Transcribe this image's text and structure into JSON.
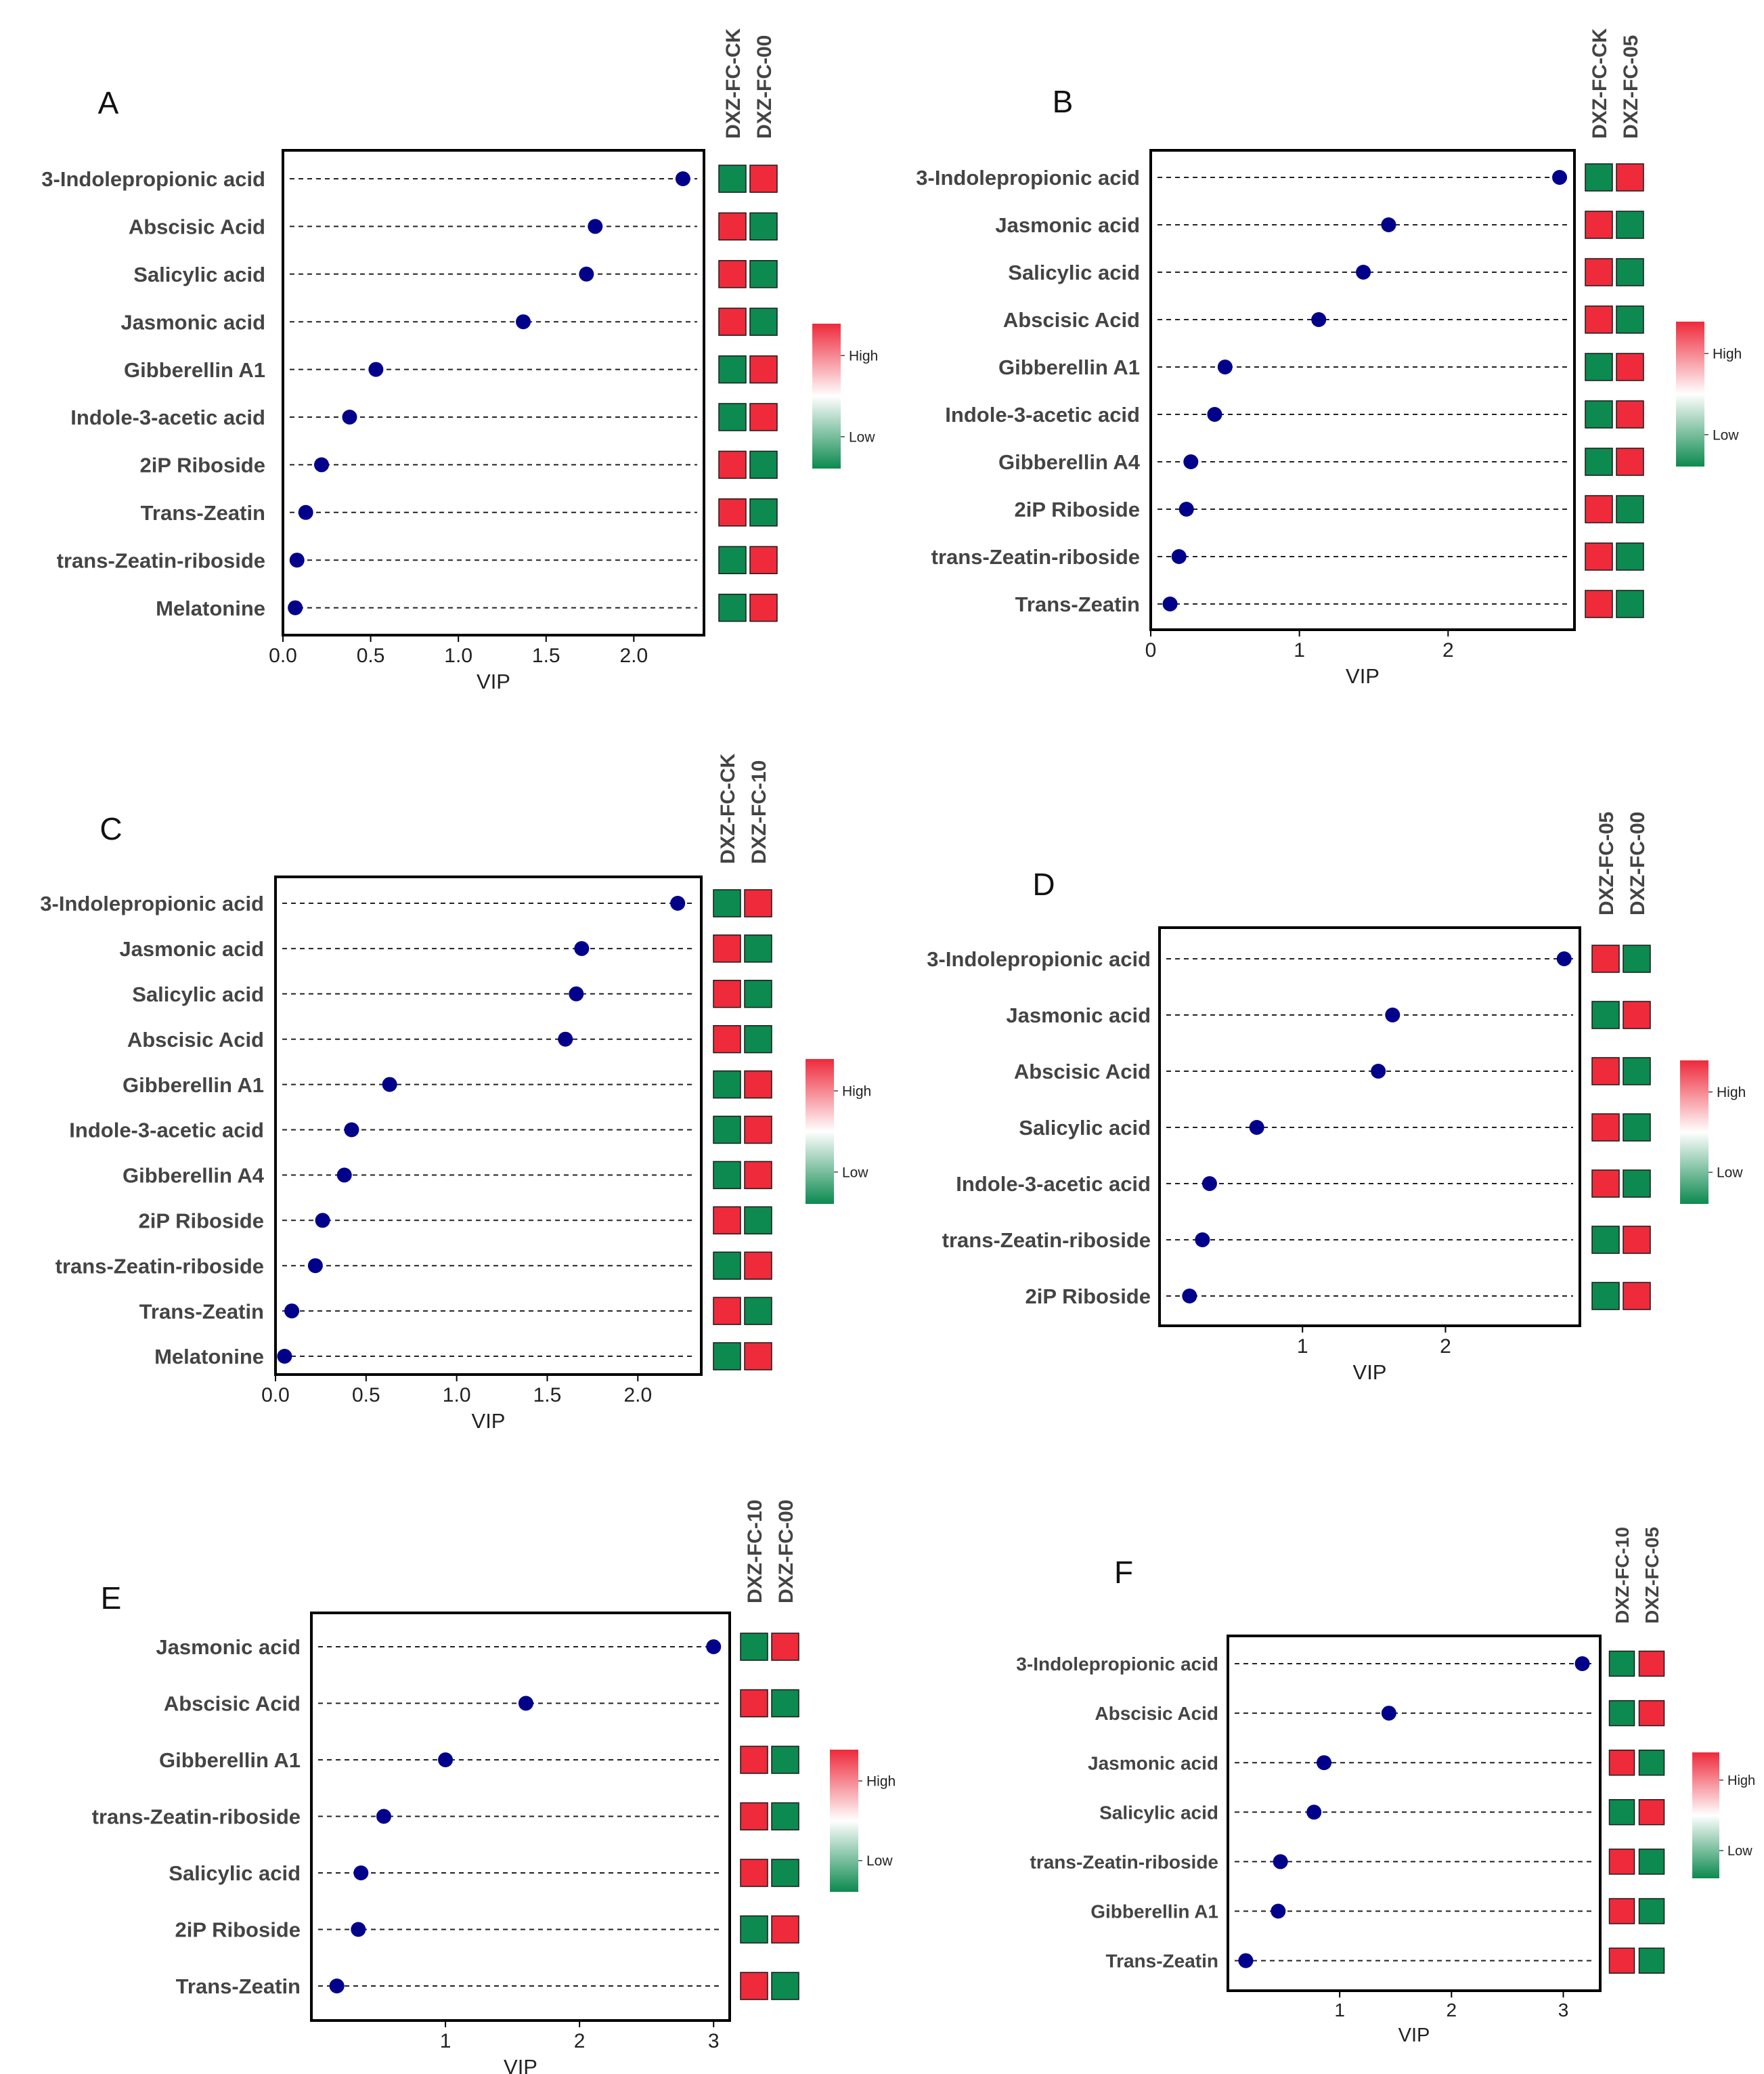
{
  "legend": {
    "high": "High",
    "low": "Low",
    "high_color": "#ee2a3b",
    "low_color": "#0c8a4f"
  },
  "colors": {
    "high": "#ee2a3b",
    "low": "#0c8a4f",
    "point": "#00008b",
    "text": "#333333"
  },
  "chart_data": [
    {
      "panel": "A",
      "type": "scatter",
      "xlabel": "VIP",
      "xticks": [
        "0.0",
        "0.5",
        "1.0",
        "1.5",
        "2.0"
      ],
      "xtick_values": [
        0,
        0.5,
        1.0,
        1.5,
        2.0
      ],
      "xlim": [
        0,
        2.4
      ],
      "groups": [
        "DXZ-FC-CK",
        "DXZ-FC-00"
      ],
      "categories": [
        "3-Indolepropionic acid",
        "Abscisic Acid",
        "Salicylic acid",
        "Jasmonic acid",
        "Gibberellin A1",
        "Indole-3-acetic acid",
        "2iP Riboside",
        "Trans-Zeatin",
        "trans-Zeatin-riboside",
        "Melatonine"
      ],
      "values": [
        2.28,
        1.78,
        1.73,
        1.37,
        0.53,
        0.38,
        0.22,
        0.13,
        0.08,
        0.07
      ],
      "heat": [
        [
          "low",
          "high"
        ],
        [
          "high",
          "low"
        ],
        [
          "high",
          "low"
        ],
        [
          "high",
          "low"
        ],
        [
          "low",
          "high"
        ],
        [
          "low",
          "high"
        ],
        [
          "high",
          "low"
        ],
        [
          "high",
          "low"
        ],
        [
          "low",
          "high"
        ],
        [
          "low",
          "high"
        ]
      ]
    },
    {
      "panel": "B",
      "type": "scatter",
      "xlabel": "VIP",
      "xticks": [
        "0",
        "1",
        "2"
      ],
      "xtick_values": [
        0,
        1,
        2
      ],
      "xlim": [
        0,
        2.85
      ],
      "groups": [
        "DXZ-FC-CK",
        "DXZ-FC-05"
      ],
      "categories": [
        "3-Indolepropionic acid",
        "Jasmonic acid",
        "Salicylic acid",
        "Abscisic Acid",
        "Gibberellin A1",
        "Indole-3-acetic acid",
        "Gibberellin A4",
        "2iP Riboside",
        "trans-Zeatin-riboside",
        "Trans-Zeatin"
      ],
      "values": [
        2.75,
        1.6,
        1.43,
        1.13,
        0.5,
        0.43,
        0.27,
        0.24,
        0.19,
        0.13
      ],
      "heat": [
        [
          "low",
          "high"
        ],
        [
          "high",
          "low"
        ],
        [
          "high",
          "low"
        ],
        [
          "high",
          "low"
        ],
        [
          "low",
          "high"
        ],
        [
          "low",
          "high"
        ],
        [
          "low",
          "high"
        ],
        [
          "high",
          "low"
        ],
        [
          "high",
          "low"
        ],
        [
          "high",
          "low"
        ]
      ]
    },
    {
      "panel": "C",
      "type": "scatter",
      "xlabel": "VIP",
      "xticks": [
        "0.0",
        "0.5",
        "1.0",
        "1.5",
        "2.0"
      ],
      "xtick_values": [
        0,
        0.5,
        1.0,
        1.5,
        2.0
      ],
      "xlim": [
        0,
        2.35
      ],
      "groups": [
        "DXZ-FC-CK",
        "DXZ-FC-10"
      ],
      "categories": [
        "3-Indolepropionic acid",
        "Jasmonic acid",
        "Salicylic acid",
        "Abscisic Acid",
        "Gibberellin A1",
        "Indole-3-acetic acid",
        "Gibberellin A4",
        "2iP Riboside",
        "trans-Zeatin-riboside",
        "Trans-Zeatin",
        "Melatonine"
      ],
      "values": [
        2.22,
        1.69,
        1.66,
        1.6,
        0.63,
        0.42,
        0.38,
        0.26,
        0.22,
        0.09,
        0.05
      ],
      "heat": [
        [
          "low",
          "high"
        ],
        [
          "high",
          "low"
        ],
        [
          "high",
          "low"
        ],
        [
          "high",
          "low"
        ],
        [
          "low",
          "high"
        ],
        [
          "low",
          "high"
        ],
        [
          "low",
          "high"
        ],
        [
          "high",
          "low"
        ],
        [
          "low",
          "high"
        ],
        [
          "high",
          "low"
        ],
        [
          "low",
          "high"
        ]
      ]
    },
    {
      "panel": "D",
      "type": "scatter",
      "xlabel": "VIP",
      "xticks": [
        "1",
        "2"
      ],
      "xtick_values": [
        1,
        2
      ],
      "xlim": [
        0.0,
        2.94
      ],
      "groups": [
        "DXZ-FC-05",
        "DXZ-FC-00"
      ],
      "categories": [
        "3-Indolepropionic acid",
        "Jasmonic acid",
        "Abscisic Acid",
        "Salicylic acid",
        "Indole-3-acetic acid",
        "trans-Zeatin-riboside",
        "2iP Riboside"
      ],
      "values": [
        2.83,
        1.63,
        1.53,
        0.68,
        0.35,
        0.3,
        0.21
      ],
      "heat": [
        [
          "high",
          "low"
        ],
        [
          "low",
          "high"
        ],
        [
          "high",
          "low"
        ],
        [
          "high",
          "low"
        ],
        [
          "high",
          "low"
        ],
        [
          "low",
          "high"
        ],
        [
          "low",
          "high"
        ]
      ]
    },
    {
      "panel": "E",
      "type": "scatter",
      "xlabel": "VIP",
      "xticks": [
        "1",
        "2",
        "3"
      ],
      "xtick_values": [
        1,
        2,
        3
      ],
      "xlim": [
        0.0,
        3.12
      ],
      "groups": [
        "DXZ-FC-10",
        "DXZ-FC-00"
      ],
      "categories": [
        "Jasmonic acid",
        "Abscisic Acid",
        "Gibberellin A1",
        "trans-Zeatin-riboside",
        "Salicylic acid",
        "2iP Riboside",
        "Trans-Zeatin"
      ],
      "values": [
        3.0,
        1.6,
        1.0,
        0.54,
        0.37,
        0.35,
        0.19
      ],
      "heat": [
        [
          "low",
          "high"
        ],
        [
          "high",
          "low"
        ],
        [
          "high",
          "low"
        ],
        [
          "high",
          "low"
        ],
        [
          "high",
          "low"
        ],
        [
          "low",
          "high"
        ],
        [
          "high",
          "low"
        ]
      ]
    },
    {
      "panel": "F",
      "type": "scatter",
      "xlabel": "VIP",
      "xticks": [
        "1",
        "2",
        "3"
      ],
      "xtick_values": [
        1,
        2,
        3
      ],
      "xlim": [
        0.0,
        3.33
      ],
      "groups": [
        "DXZ-FC-10",
        "DXZ-FC-05"
      ],
      "categories": [
        "3-Indolepropionic acid",
        "Abscisic Acid",
        "Jasmonic acid",
        "Salicylic acid",
        "trans-Zeatin-riboside",
        "Gibberellin A1",
        "Trans-Zeatin"
      ],
      "values": [
        3.17,
        1.44,
        0.86,
        0.77,
        0.47,
        0.45,
        0.16
      ],
      "heat": [
        [
          "low",
          "high"
        ],
        [
          "low",
          "high"
        ],
        [
          "high",
          "low"
        ],
        [
          "low",
          "high"
        ],
        [
          "high",
          "low"
        ],
        [
          "high",
          "low"
        ],
        [
          "high",
          "low"
        ]
      ]
    }
  ]
}
